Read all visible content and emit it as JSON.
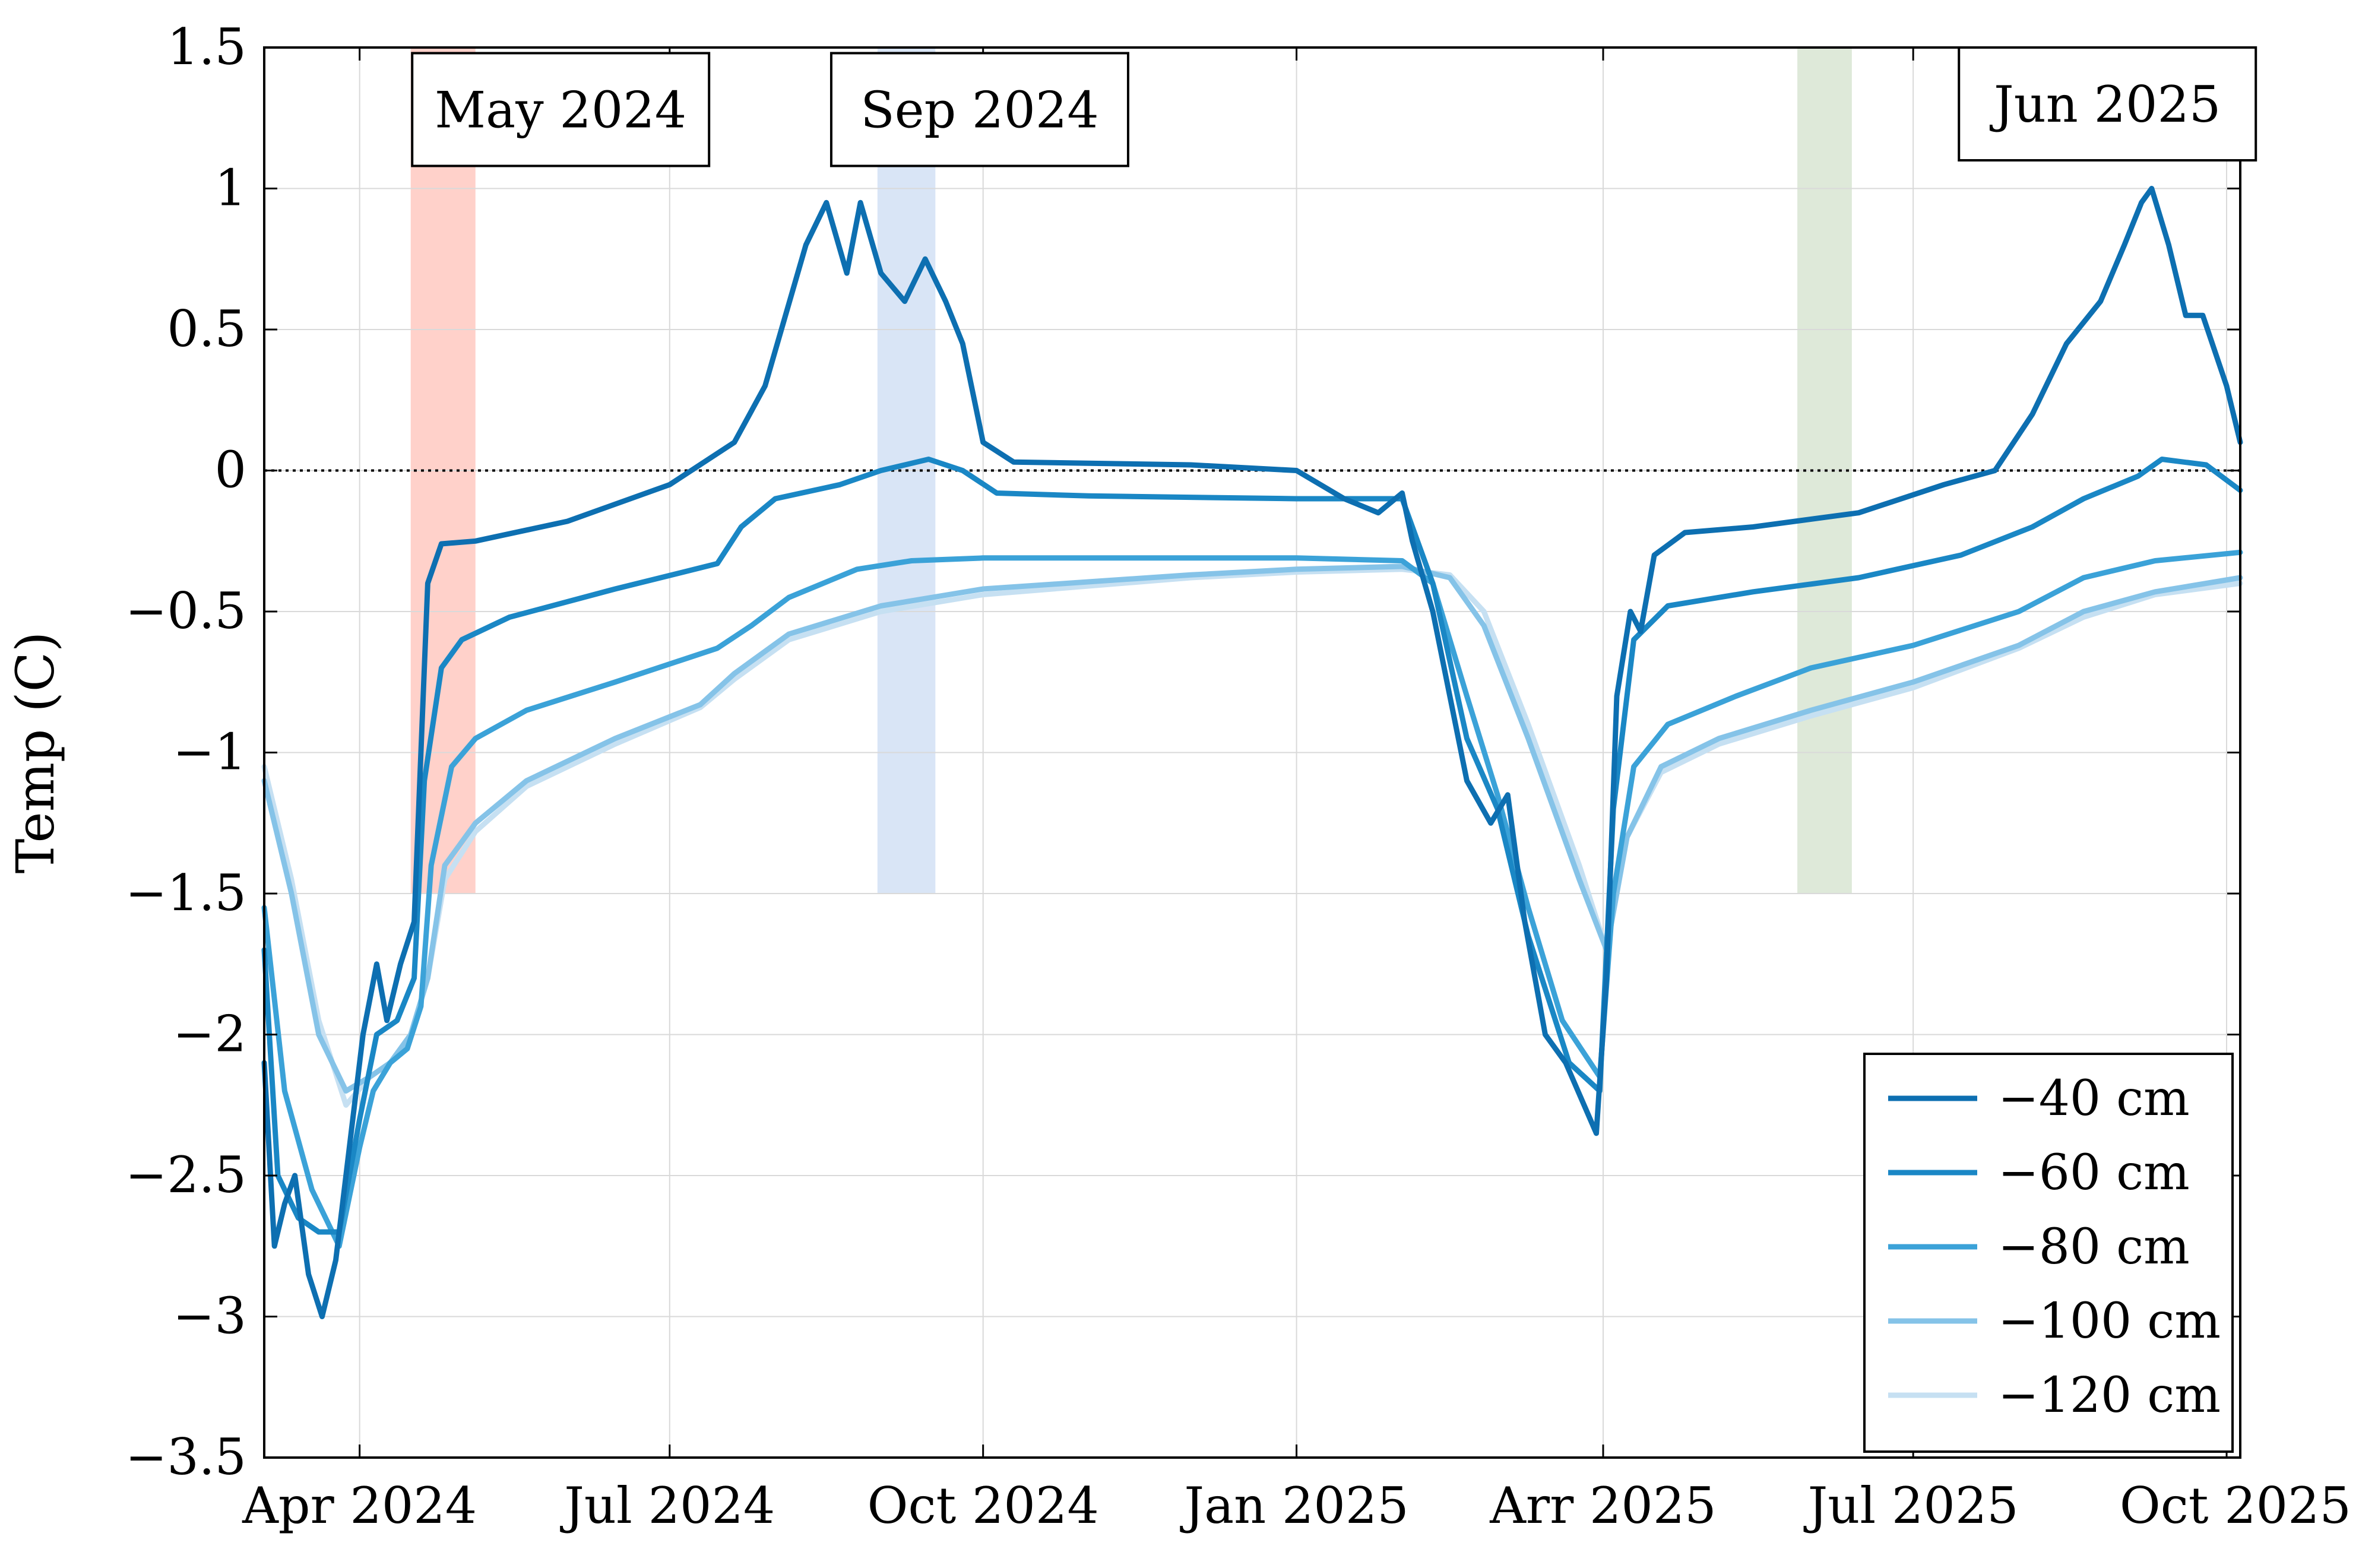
{
  "chart_data": {
    "type": "line",
    "title": "",
    "xlabel": "",
    "ylabel": "Temp (C)",
    "ylim": [
      -3.5,
      1.5
    ],
    "yticks": [
      1.5,
      1,
      0.5,
      0,
      -0.5,
      -1,
      -1.5,
      -2,
      -2.5,
      -3,
      -3.5
    ],
    "ytick_labels": [
      "1.5",
      "1",
      "0.5",
      "0",
      "−0.5",
      "−1",
      "−1.5",
      "−2",
      "−2.5",
      "−3",
      "−3.5"
    ],
    "xlim": [
      "2024-03-04",
      "2025-10-05"
    ],
    "xticks": [
      "2024-04-01",
      "2024-07-01",
      "2024-10-01",
      "2025-01-01",
      "2025-04-01",
      "2025-07-01",
      "2025-10-01"
    ],
    "xtick_labels": [
      "Apr 2024",
      "Jul 2024",
      "Oct 2024",
      "Jan 2025",
      "Arr 2025",
      "Jul 2025",
      "Oct 2025"
    ],
    "grid": true,
    "legend_position": "bottom-right",
    "reference_line": {
      "y": 0,
      "style": "dotted",
      "color": "#000000"
    },
    "shaded_bands": [
      {
        "start": "2024-04-16",
        "end": "2024-05-05",
        "ymin": -1.5,
        "ymax": 1.5,
        "color": "#ffc9c1"
      },
      {
        "start": "2024-08-31",
        "end": "2024-09-17",
        "ymin": -1.5,
        "ymax": 1.5,
        "color": "#d2e0f4"
      },
      {
        "start": "2025-05-28",
        "end": "2025-06-13",
        "ymin": -1.5,
        "ymax": 1.5,
        "color": "#d8e5d2"
      }
    ],
    "annotations": [
      {
        "text": "May 2024",
        "x": "2024-05-30",
        "y": 1.28
      },
      {
        "text": "Sep 2024",
        "x": "2024-09-30",
        "y": 1.28
      },
      {
        "text": "Jun 2025",
        "x": "2025-08-27",
        "y": 1.3
      }
    ],
    "series": [
      {
        "name": "−40 cm",
        "color": "#0d6fb1",
        "points": [
          [
            "2024-03-04",
            -2.1
          ],
          [
            "2024-03-07",
            -2.75
          ],
          [
            "2024-03-10",
            -2.6
          ],
          [
            "2024-03-13",
            -2.5
          ],
          [
            "2024-03-17",
            -2.85
          ],
          [
            "2024-03-21",
            -3.0
          ],
          [
            "2024-03-25",
            -2.8
          ],
          [
            "2024-03-29",
            -2.4
          ],
          [
            "2024-04-02",
            -2.0
          ],
          [
            "2024-04-06",
            -1.75
          ],
          [
            "2024-04-09",
            -1.95
          ],
          [
            "2024-04-13",
            -1.75
          ],
          [
            "2024-04-17",
            -1.6
          ],
          [
            "2024-04-19",
            -1.0
          ],
          [
            "2024-04-21",
            -0.4
          ],
          [
            "2024-04-25",
            -0.26
          ],
          [
            "2024-05-05",
            -0.25
          ],
          [
            "2024-06-01",
            -0.18
          ],
          [
            "2024-07-01",
            -0.05
          ],
          [
            "2024-07-20",
            0.1
          ],
          [
            "2024-07-29",
            0.3
          ],
          [
            "2024-08-04",
            0.55
          ],
          [
            "2024-08-10",
            0.8
          ],
          [
            "2024-08-16",
            0.95
          ],
          [
            "2024-08-22",
            0.7
          ],
          [
            "2024-08-26",
            0.95
          ],
          [
            "2024-09-01",
            0.7
          ],
          [
            "2024-09-08",
            0.6
          ],
          [
            "2024-09-14",
            0.75
          ],
          [
            "2024-09-20",
            0.6
          ],
          [
            "2024-09-25",
            0.45
          ],
          [
            "2024-10-01",
            0.1
          ],
          [
            "2024-10-10",
            0.03
          ],
          [
            "2024-12-01",
            0.02
          ],
          [
            "2025-01-01",
            0.0
          ],
          [
            "2025-01-15",
            -0.1
          ],
          [
            "2025-01-25",
            -0.15
          ],
          [
            "2025-02-01",
            -0.08
          ],
          [
            "2025-02-04",
            -0.25
          ],
          [
            "2025-02-10",
            -0.5
          ],
          [
            "2025-02-20",
            -1.1
          ],
          [
            "2025-02-27",
            -1.25
          ],
          [
            "2025-03-04",
            -1.15
          ],
          [
            "2025-03-09",
            -1.6
          ],
          [
            "2025-03-15",
            -2.0
          ],
          [
            "2025-03-21",
            -2.1
          ],
          [
            "2025-03-30",
            -2.35
          ],
          [
            "2025-04-02",
            -1.8
          ],
          [
            "2025-04-05",
            -0.8
          ],
          [
            "2025-04-09",
            -0.5
          ],
          [
            "2025-04-12",
            -0.57
          ],
          [
            "2025-04-16",
            -0.3
          ],
          [
            "2025-04-25",
            -0.22
          ],
          [
            "2025-05-15",
            -0.2
          ],
          [
            "2025-06-15",
            -0.15
          ],
          [
            "2025-07-10",
            -0.05
          ],
          [
            "2025-07-25",
            0.0
          ],
          [
            "2025-08-05",
            0.2
          ],
          [
            "2025-08-15",
            0.45
          ],
          [
            "2025-08-25",
            0.6
          ],
          [
            "2025-09-01",
            0.8
          ],
          [
            "2025-09-06",
            0.95
          ],
          [
            "2025-09-09",
            1.0
          ],
          [
            "2025-09-14",
            0.8
          ],
          [
            "2025-09-19",
            0.55
          ],
          [
            "2025-09-24",
            0.55
          ],
          [
            "2025-10-01",
            0.3
          ],
          [
            "2025-10-05",
            0.1
          ]
        ]
      },
      {
        "name": "−60 cm",
        "color": "#1a87c5",
        "points": [
          [
            "2024-03-04",
            -1.7
          ],
          [
            "2024-03-08",
            -2.5
          ],
          [
            "2024-03-14",
            -2.65
          ],
          [
            "2024-03-20",
            -2.7
          ],
          [
            "2024-03-26",
            -2.7
          ],
          [
            "2024-04-01",
            -2.3
          ],
          [
            "2024-04-06",
            -2.0
          ],
          [
            "2024-04-12",
            -1.95
          ],
          [
            "2024-04-17",
            -1.8
          ],
          [
            "2024-04-20",
            -1.1
          ],
          [
            "2024-04-25",
            -0.7
          ],
          [
            "2024-05-01",
            -0.6
          ],
          [
            "2024-05-15",
            -0.52
          ],
          [
            "2024-06-15",
            -0.42
          ],
          [
            "2024-07-15",
            -0.33
          ],
          [
            "2024-07-22",
            -0.2
          ],
          [
            "2024-08-01",
            -0.1
          ],
          [
            "2024-08-20",
            -0.05
          ],
          [
            "2024-09-01",
            0.0
          ],
          [
            "2024-09-15",
            0.04
          ],
          [
            "2024-09-25",
            0.0
          ],
          [
            "2024-10-05",
            -0.08
          ],
          [
            "2024-11-01",
            -0.09
          ],
          [
            "2025-01-01",
            -0.1
          ],
          [
            "2025-02-01",
            -0.1
          ],
          [
            "2025-02-10",
            -0.4
          ],
          [
            "2025-02-20",
            -0.95
          ],
          [
            "2025-03-01",
            -1.2
          ],
          [
            "2025-03-10",
            -1.65
          ],
          [
            "2025-03-22",
            -2.1
          ],
          [
            "2025-03-31",
            -2.2
          ],
          [
            "2025-04-04",
            -1.2
          ],
          [
            "2025-04-10",
            -0.6
          ],
          [
            "2025-04-20",
            -0.48
          ],
          [
            "2025-05-15",
            -0.43
          ],
          [
            "2025-06-15",
            -0.38
          ],
          [
            "2025-07-15",
            -0.3
          ],
          [
            "2025-08-05",
            -0.2
          ],
          [
            "2025-08-20",
            -0.1
          ],
          [
            "2025-09-05",
            -0.02
          ],
          [
            "2025-09-12",
            0.04
          ],
          [
            "2025-09-25",
            0.02
          ],
          [
            "2025-10-05",
            -0.07
          ]
        ]
      },
      {
        "name": "−80 cm",
        "color": "#3ba2d8",
        "points": [
          [
            "2024-03-04",
            -1.55
          ],
          [
            "2024-03-10",
            -2.2
          ],
          [
            "2024-03-18",
            -2.55
          ],
          [
            "2024-03-26",
            -2.75
          ],
          [
            "2024-04-01",
            -2.4
          ],
          [
            "2024-04-05",
            -2.2
          ],
          [
            "2024-04-10",
            -2.1
          ],
          [
            "2024-04-15",
            -2.05
          ],
          [
            "2024-04-19",
            -1.9
          ],
          [
            "2024-04-22",
            -1.4
          ],
          [
            "2024-04-28",
            -1.05
          ],
          [
            "2024-05-05",
            -0.95
          ],
          [
            "2024-05-20",
            -0.85
          ],
          [
            "2024-06-15",
            -0.75
          ],
          [
            "2024-07-15",
            -0.63
          ],
          [
            "2024-07-25",
            -0.55
          ],
          [
            "2024-08-05",
            -0.45
          ],
          [
            "2024-08-25",
            -0.35
          ],
          [
            "2024-09-10",
            -0.32
          ],
          [
            "2024-10-01",
            -0.31
          ],
          [
            "2024-12-01",
            -0.31
          ],
          [
            "2025-01-01",
            -0.31
          ],
          [
            "2025-02-01",
            -0.32
          ],
          [
            "2025-02-10",
            -0.4
          ],
          [
            "2025-02-20",
            -0.8
          ],
          [
            "2025-03-01",
            -1.15
          ],
          [
            "2025-03-10",
            -1.55
          ],
          [
            "2025-03-20",
            -1.95
          ],
          [
            "2025-03-31",
            -2.15
          ],
          [
            "2025-04-04",
            -1.5
          ],
          [
            "2025-04-10",
            -1.05
          ],
          [
            "2025-04-20",
            -0.9
          ],
          [
            "2025-05-10",
            -0.8
          ],
          [
            "2025-06-01",
            -0.7
          ],
          [
            "2025-07-01",
            -0.62
          ],
          [
            "2025-08-01",
            -0.5
          ],
          [
            "2025-08-20",
            -0.38
          ],
          [
            "2025-09-10",
            -0.32
          ],
          [
            "2025-10-05",
            -0.29
          ]
        ]
      },
      {
        "name": "−100 cm",
        "color": "#85c3e8",
        "points": [
          [
            "2024-03-04",
            -1.1
          ],
          [
            "2024-03-12",
            -1.5
          ],
          [
            "2024-03-20",
            -2.0
          ],
          [
            "2024-03-28",
            -2.2
          ],
          [
            "2024-04-04",
            -2.15
          ],
          [
            "2024-04-10",
            -2.1
          ],
          [
            "2024-04-16",
            -2.0
          ],
          [
            "2024-04-21",
            -1.8
          ],
          [
            "2024-04-26",
            -1.4
          ],
          [
            "2024-05-05",
            -1.25
          ],
          [
            "2024-05-20",
            -1.1
          ],
          [
            "2024-06-15",
            -0.95
          ],
          [
            "2024-07-10",
            -0.83
          ],
          [
            "2024-07-20",
            -0.72
          ],
          [
            "2024-08-05",
            -0.58
          ],
          [
            "2024-09-01",
            -0.48
          ],
          [
            "2024-10-01",
            -0.42
          ],
          [
            "2024-12-01",
            -0.37
          ],
          [
            "2025-01-01",
            -0.35
          ],
          [
            "2025-02-01",
            -0.34
          ],
          [
            "2025-02-15",
            -0.38
          ],
          [
            "2025-02-25",
            -0.55
          ],
          [
            "2025-03-10",
            -0.95
          ],
          [
            "2025-03-25",
            -1.45
          ],
          [
            "2025-04-02",
            -1.7
          ],
          [
            "2025-04-08",
            -1.3
          ],
          [
            "2025-04-18",
            -1.05
          ],
          [
            "2025-05-05",
            -0.95
          ],
          [
            "2025-06-01",
            -0.85
          ],
          [
            "2025-07-01",
            -0.75
          ],
          [
            "2025-08-01",
            -0.62
          ],
          [
            "2025-08-20",
            -0.5
          ],
          [
            "2025-09-10",
            -0.43
          ],
          [
            "2025-10-05",
            -0.38
          ]
        ]
      },
      {
        "name": "−120 cm",
        "color": "#c6e0f2",
        "points": [
          [
            "2024-03-04",
            -1.05
          ],
          [
            "2024-03-12",
            -1.45
          ],
          [
            "2024-03-20",
            -1.95
          ],
          [
            "2024-03-28",
            -2.25
          ],
          [
            "2024-04-04",
            -2.15
          ],
          [
            "2024-04-10",
            -2.1
          ],
          [
            "2024-04-16",
            -2.0
          ],
          [
            "2024-04-21",
            -1.8
          ],
          [
            "2024-04-26",
            -1.45
          ],
          [
            "2024-05-05",
            -1.28
          ],
          [
            "2024-05-20",
            -1.12
          ],
          [
            "2024-06-15",
            -0.97
          ],
          [
            "2024-07-10",
            -0.84
          ],
          [
            "2024-07-20",
            -0.74
          ],
          [
            "2024-08-05",
            -0.6
          ],
          [
            "2024-09-01",
            -0.5
          ],
          [
            "2024-10-01",
            -0.44
          ],
          [
            "2024-12-01",
            -0.38
          ],
          [
            "2025-01-01",
            -0.36
          ],
          [
            "2025-02-01",
            -0.35
          ],
          [
            "2025-02-15",
            -0.37
          ],
          [
            "2025-02-25",
            -0.5
          ],
          [
            "2025-03-10",
            -0.9
          ],
          [
            "2025-03-25",
            -1.4
          ],
          [
            "2025-04-02",
            -1.7
          ],
          [
            "2025-04-08",
            -1.3
          ],
          [
            "2025-04-18",
            -1.07
          ],
          [
            "2025-05-05",
            -0.97
          ],
          [
            "2025-06-01",
            -0.87
          ],
          [
            "2025-07-01",
            -0.77
          ],
          [
            "2025-08-01",
            -0.63
          ],
          [
            "2025-08-20",
            -0.52
          ],
          [
            "2025-09-10",
            -0.44
          ],
          [
            "2025-10-05",
            -0.4
          ]
        ]
      }
    ]
  }
}
